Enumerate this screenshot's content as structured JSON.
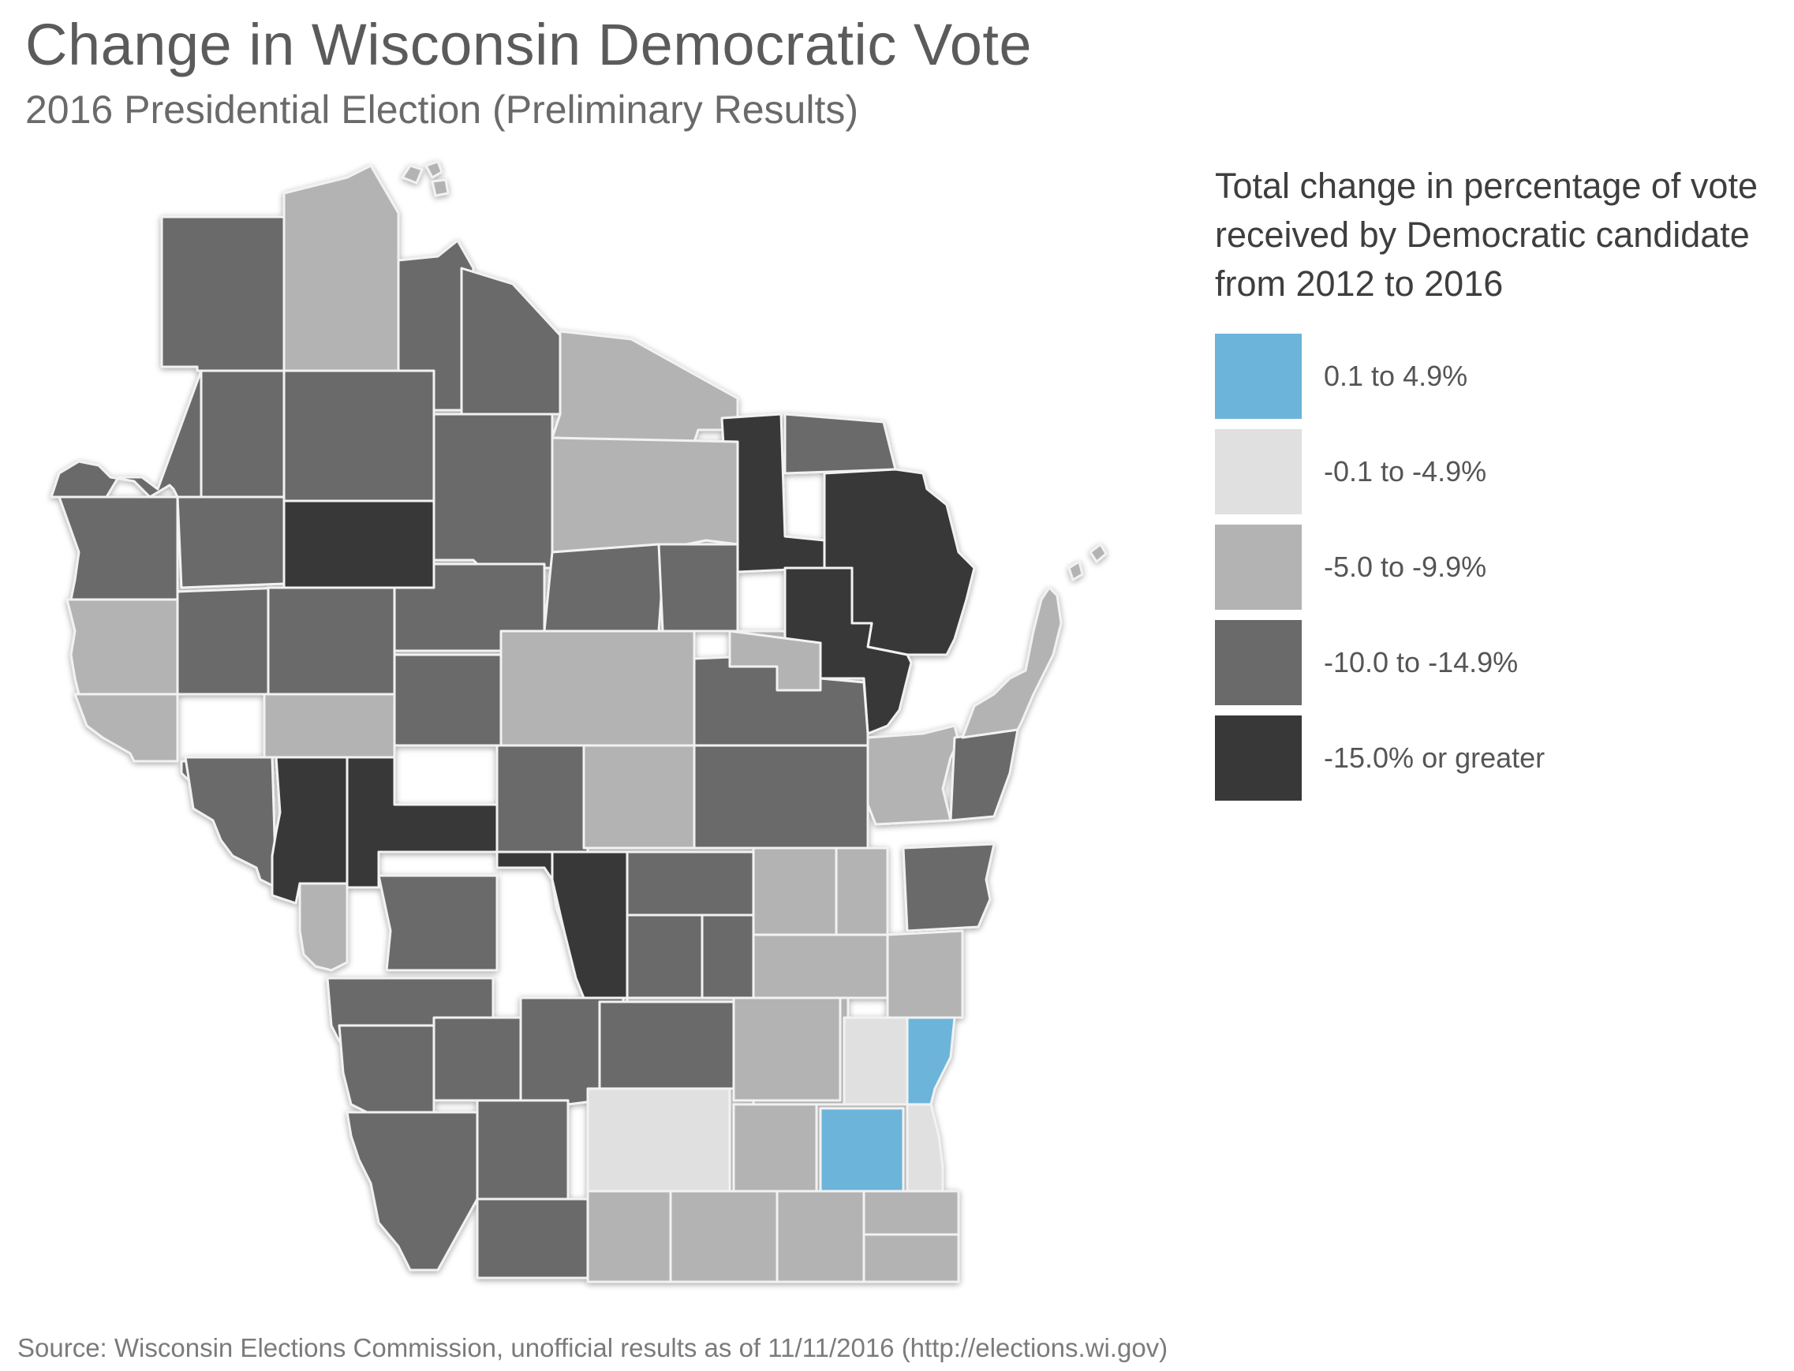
{
  "title": "Change in Wisconsin Democratic Vote",
  "subtitle": "2016 Presidential Election (Preliminary Results)",
  "legend": {
    "title_lines": [
      "Total change in percentage of vote",
      "received by Democratic candidate",
      "from 2012 to 2016"
    ],
    "items": [
      {
        "label": "0.1 to 4.9%",
        "color": "#6cb4da"
      },
      {
        "label": "-0.1 to -4.9%",
        "color": "#e0e0e0"
      },
      {
        "label": "-5.0 to -9.9%",
        "color": "#b3b3b3"
      },
      {
        "label": "-10.0 to -14.9%",
        "color": "#6a6a6a"
      },
      {
        "label": "-15.0% or greater",
        "color": "#383838"
      }
    ]
  },
  "source": "Source: Wisconsin Elections Commission, unofficial results as of 11/11/2016 (http://elections.wi.gov)",
  "colors": {
    "blue": "#6cb4da",
    "light": "#e0e0e0",
    "mid": "#b3b3b3",
    "dark": "#6a6a6a",
    "darkest": "#383838",
    "border": "#f2f2f2"
  }
}
